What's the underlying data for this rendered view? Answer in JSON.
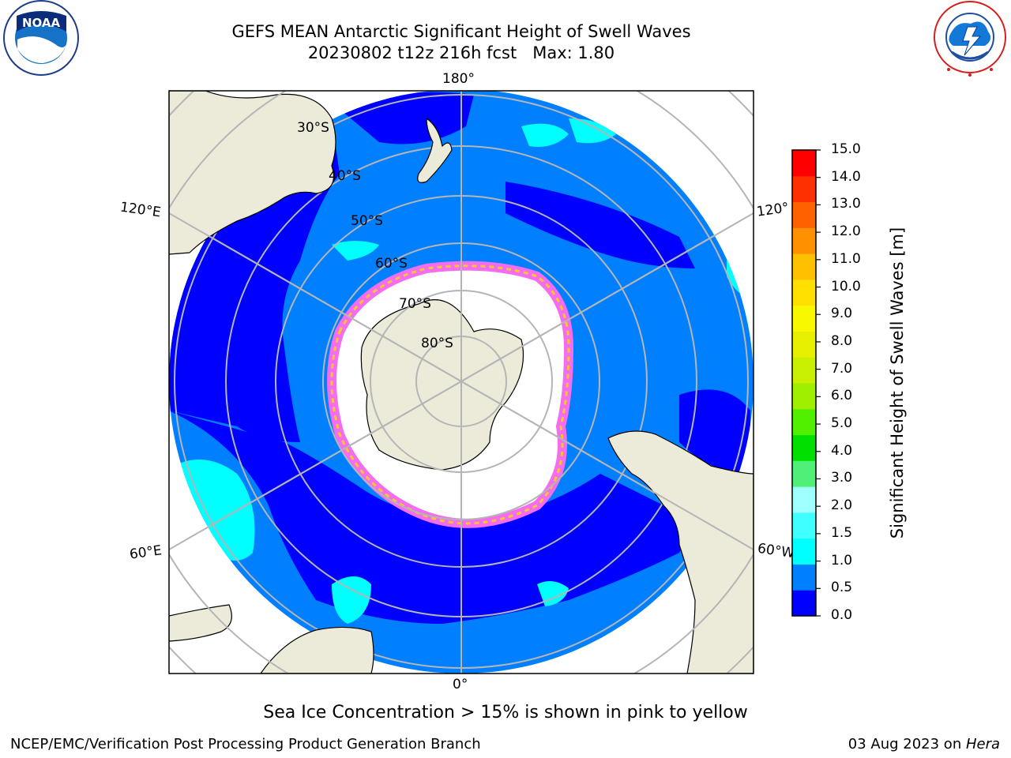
{
  "title": {
    "line1": "GEFS MEAN Antarctic Significant Height of Swell Waves",
    "line2": "20230802 t12z 216h fcst   Max: 1.80"
  },
  "logos": {
    "left": {
      "name": "noara-logo",
      "text": "NOAA"
    },
    "right": {
      "name": "nws-logo",
      "ring_text": "NATIONAL WEATHER SERVICE"
    }
  },
  "map": {
    "projection": "south-polar-stereographic",
    "longitude_labels": {
      "top": "180°",
      "bottom": "0°",
      "upper_left": "120°E",
      "upper_right": "120°",
      "lower_left": "60°E",
      "lower_right": "60°W"
    },
    "latitude_labels": [
      "30°S",
      "40°S",
      "50°S",
      "60°S",
      "70°S",
      "80°S"
    ],
    "colors": {
      "land": "#ecebda",
      "ice": "#ffffff",
      "graticule": "#b5b5b5",
      "ice_edge_pink": "#f46cf0",
      "ice_edge_yellow": "#f6c531"
    }
  },
  "colorbar": {
    "title": "Significant Height of Swell Waves [m]",
    "ticks": [
      "0.0",
      "0.5",
      "1.0",
      "1.5",
      "2.0",
      "3.0",
      "4.0",
      "5.0",
      "6.0",
      "7.0",
      "8.0",
      "9.0",
      "10.0",
      "11.0",
      "12.0",
      "13.0",
      "14.0",
      "15.0"
    ],
    "colors": [
      "#0000ff",
      "#0080ff",
      "#00ffff",
      "#40ffff",
      "#a0ffff",
      "#50f078",
      "#00e000",
      "#50f000",
      "#a0ee00",
      "#c8f000",
      "#e6f000",
      "#f8f800",
      "#ffe000",
      "#ffc000",
      "#ff9000",
      "#ff6000",
      "#ff3000",
      "#ff0000"
    ]
  },
  "note": "Sea Ice Concentration > 15% is shown in pink to yellow",
  "footer": {
    "left": "NCEP/EMC/Verification Post Processing Product Generation Branch",
    "right_date": "03 Aug 2023 on ",
    "right_host": "Hera"
  }
}
